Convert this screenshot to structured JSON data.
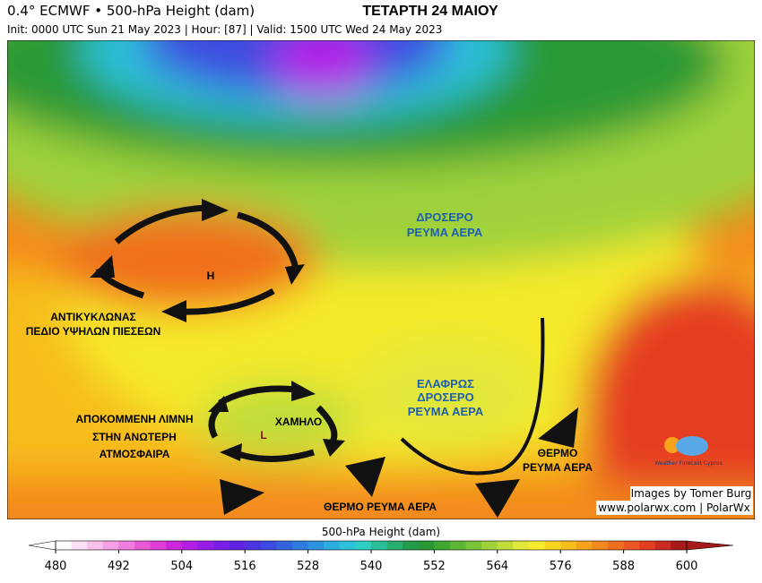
{
  "header": {
    "title": "0.4° ECMWF • 500-hPa Height (dam)",
    "date": "ΤΕΤΑΡΤΗ 24 ΜΑΙΟΥ",
    "init": "Init: 0000 UTC Sun 21 May 2023 | Hour: [87] | Valid: 1500 UTC Wed 24 May 2023"
  },
  "annotations": {
    "cool_north": [
      "ΔΡΟΣΕΡΟ",
      "ΡΕΥΜΑ ΑΕΡΑ"
    ],
    "high_symbol": "H",
    "high_label": [
      "ΑΝΤΙΚΥΚΛΩΝΑΣ",
      "ΠΕΔΙΟ ΥΨΗΛΩΝ ΠΙΕΣΕΩΝ"
    ],
    "low_symbol": "L",
    "low_label": "ΧΑΜΗΛΟ",
    "cutoff_low": [
      "ΑΠΟΚΟΜΜΕΝΗ ΛΙΜΝΗ",
      "ΣΤΗΝ ΑΝΩΤΕΡΗ",
      "ΑΤΜΟΣΦΑΙΡΑ"
    ],
    "cool_east": [
      "ΕΛΑΦΡΩΣ",
      "ΔΡΟΣΕΡΟ",
      "ΡΕΥΜΑ ΑΕΡΑ"
    ],
    "warm_east": [
      "ΘΕΡΜΟ",
      "ΡΕΥΜΑ ΑΕΡΑ"
    ],
    "warm_south": "ΘΕΡΜΟ ΡΕΥΜΑ ΑΕΡΑ"
  },
  "credits": {
    "images": "Images by Tomer Burg",
    "site": "www.polarwx.com | PolarWx",
    "logo": "Weather Forecast Cyprus"
  },
  "colorbar": {
    "label": "500-hPa Height (dam)",
    "lim": [
      480,
      600
    ],
    "step": 3,
    "ticks": [
      480,
      492,
      504,
      516,
      528,
      540,
      552,
      564,
      576,
      588,
      600
    ],
    "colors": [
      "#ffffff",
      "#fde0f5",
      "#fbc0ee",
      "#f79fe6",
      "#f07ddd",
      "#e85ad5",
      "#e03bd6",
      "#cc27de",
      "#b31ee6",
      "#961ce8",
      "#7a1de8",
      "#5f24e4",
      "#4a35e0",
      "#3d4be0",
      "#3463e0",
      "#2f7be0",
      "#2d93e0",
      "#2caddf",
      "#2cc3da",
      "#2dd0c4",
      "#2bbf99",
      "#26ad6f",
      "#239d4c",
      "#2a9a36",
      "#3fa833",
      "#5ab634",
      "#7bc436",
      "#9ed13a",
      "#c2dd3a",
      "#e2e83a",
      "#f5ea2c",
      "#f7d51f",
      "#f7bd1a",
      "#f5a31a",
      "#f38a1b",
      "#f0701f",
      "#ec5622",
      "#e53d22",
      "#c92a20",
      "#a81a1a"
    ]
  }
}
